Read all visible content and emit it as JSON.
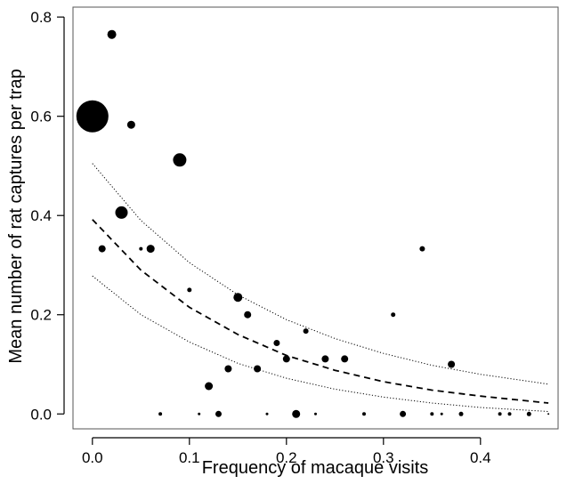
{
  "chart_data": {
    "type": "scatter",
    "title": "",
    "xlabel": "Frequency of macaque visits",
    "ylabel": "Mean number of rat captures per trap",
    "xlim": [
      -0.02,
      0.48
    ],
    "ylim": [
      -0.03,
      0.82
    ],
    "xticks": [
      "0.0",
      "0.1",
      "0.2",
      "0.3",
      "0.4"
    ],
    "yticks": [
      "0.0",
      "0.2",
      "0.4",
      "0.6",
      "0.8"
    ],
    "grid": false,
    "legend": "none",
    "marker_color": "#000000",
    "points": [
      {
        "x": 0.0,
        "y": 0.6,
        "r": 18
      },
      {
        "x": 0.02,
        "y": 0.765,
        "r": 5
      },
      {
        "x": 0.04,
        "y": 0.583,
        "r": 4.5
      },
      {
        "x": 0.09,
        "y": 0.512,
        "r": 7.5
      },
      {
        "x": 0.03,
        "y": 0.406,
        "r": 7
      },
      {
        "x": 0.01,
        "y": 0.333,
        "r": 4
      },
      {
        "x": 0.05,
        "y": 0.333,
        "r": 2
      },
      {
        "x": 0.06,
        "y": 0.333,
        "r": 4.5
      },
      {
        "x": 0.1,
        "y": 0.25,
        "r": 2.5
      },
      {
        "x": 0.15,
        "y": 0.235,
        "r": 5
      },
      {
        "x": 0.16,
        "y": 0.2,
        "r": 4
      },
      {
        "x": 0.19,
        "y": 0.143,
        "r": 3.5
      },
      {
        "x": 0.22,
        "y": 0.167,
        "r": 3
      },
      {
        "x": 0.2,
        "y": 0.111,
        "r": 4
      },
      {
        "x": 0.24,
        "y": 0.111,
        "r": 4
      },
      {
        "x": 0.26,
        "y": 0.111,
        "r": 4
      },
      {
        "x": 0.14,
        "y": 0.091,
        "r": 4
      },
      {
        "x": 0.17,
        "y": 0.091,
        "r": 4
      },
      {
        "x": 0.12,
        "y": 0.056,
        "r": 4.5
      },
      {
        "x": 0.31,
        "y": 0.2,
        "r": 2.5
      },
      {
        "x": 0.34,
        "y": 0.333,
        "r": 3
      },
      {
        "x": 0.37,
        "y": 0.1,
        "r": 4
      },
      {
        "x": 0.07,
        "y": 0.0,
        "r": 2
      },
      {
        "x": 0.11,
        "y": 0.0,
        "r": 1.5
      },
      {
        "x": 0.13,
        "y": 0.0,
        "r": 3.5
      },
      {
        "x": 0.18,
        "y": 0.0,
        "r": 1.5
      },
      {
        "x": 0.21,
        "y": 0.0,
        "r": 4.5
      },
      {
        "x": 0.23,
        "y": 0.0,
        "r": 1.5
      },
      {
        "x": 0.28,
        "y": 0.0,
        "r": 2
      },
      {
        "x": 0.32,
        "y": 0.0,
        "r": 3.5
      },
      {
        "x": 0.35,
        "y": 0.0,
        "r": 2
      },
      {
        "x": 0.36,
        "y": 0.0,
        "r": 1.5
      },
      {
        "x": 0.38,
        "y": 0.0,
        "r": 2.5
      },
      {
        "x": 0.42,
        "y": 0.0,
        "r": 2
      },
      {
        "x": 0.43,
        "y": 0.0,
        "r": 2
      },
      {
        "x": 0.45,
        "y": 0.0,
        "r": 2.5
      },
      {
        "x": 0.47,
        "y": 0.0,
        "r": 1
      }
    ],
    "series": [
      {
        "style": "dashed",
        "x": [
          0.0,
          0.05,
          0.1,
          0.15,
          0.2,
          0.25,
          0.3,
          0.35,
          0.4,
          0.47
        ],
        "y": [
          0.392,
          0.29,
          0.215,
          0.16,
          0.118,
          0.088,
          0.065,
          0.048,
          0.036,
          0.022
        ]
      },
      {
        "style": "dotted",
        "x": [
          0.0,
          0.05,
          0.1,
          0.15,
          0.2,
          0.25,
          0.3,
          0.35,
          0.4,
          0.47
        ],
        "y": [
          0.505,
          0.39,
          0.305,
          0.24,
          0.19,
          0.152,
          0.122,
          0.098,
          0.08,
          0.06
        ]
      },
      {
        "style": "dotted",
        "x": [
          0.0,
          0.05,
          0.1,
          0.15,
          0.2,
          0.25,
          0.3,
          0.35,
          0.4,
          0.47
        ],
        "y": [
          0.278,
          0.2,
          0.145,
          0.102,
          0.072,
          0.05,
          0.034,
          0.022,
          0.013,
          0.005
        ]
      }
    ]
  }
}
